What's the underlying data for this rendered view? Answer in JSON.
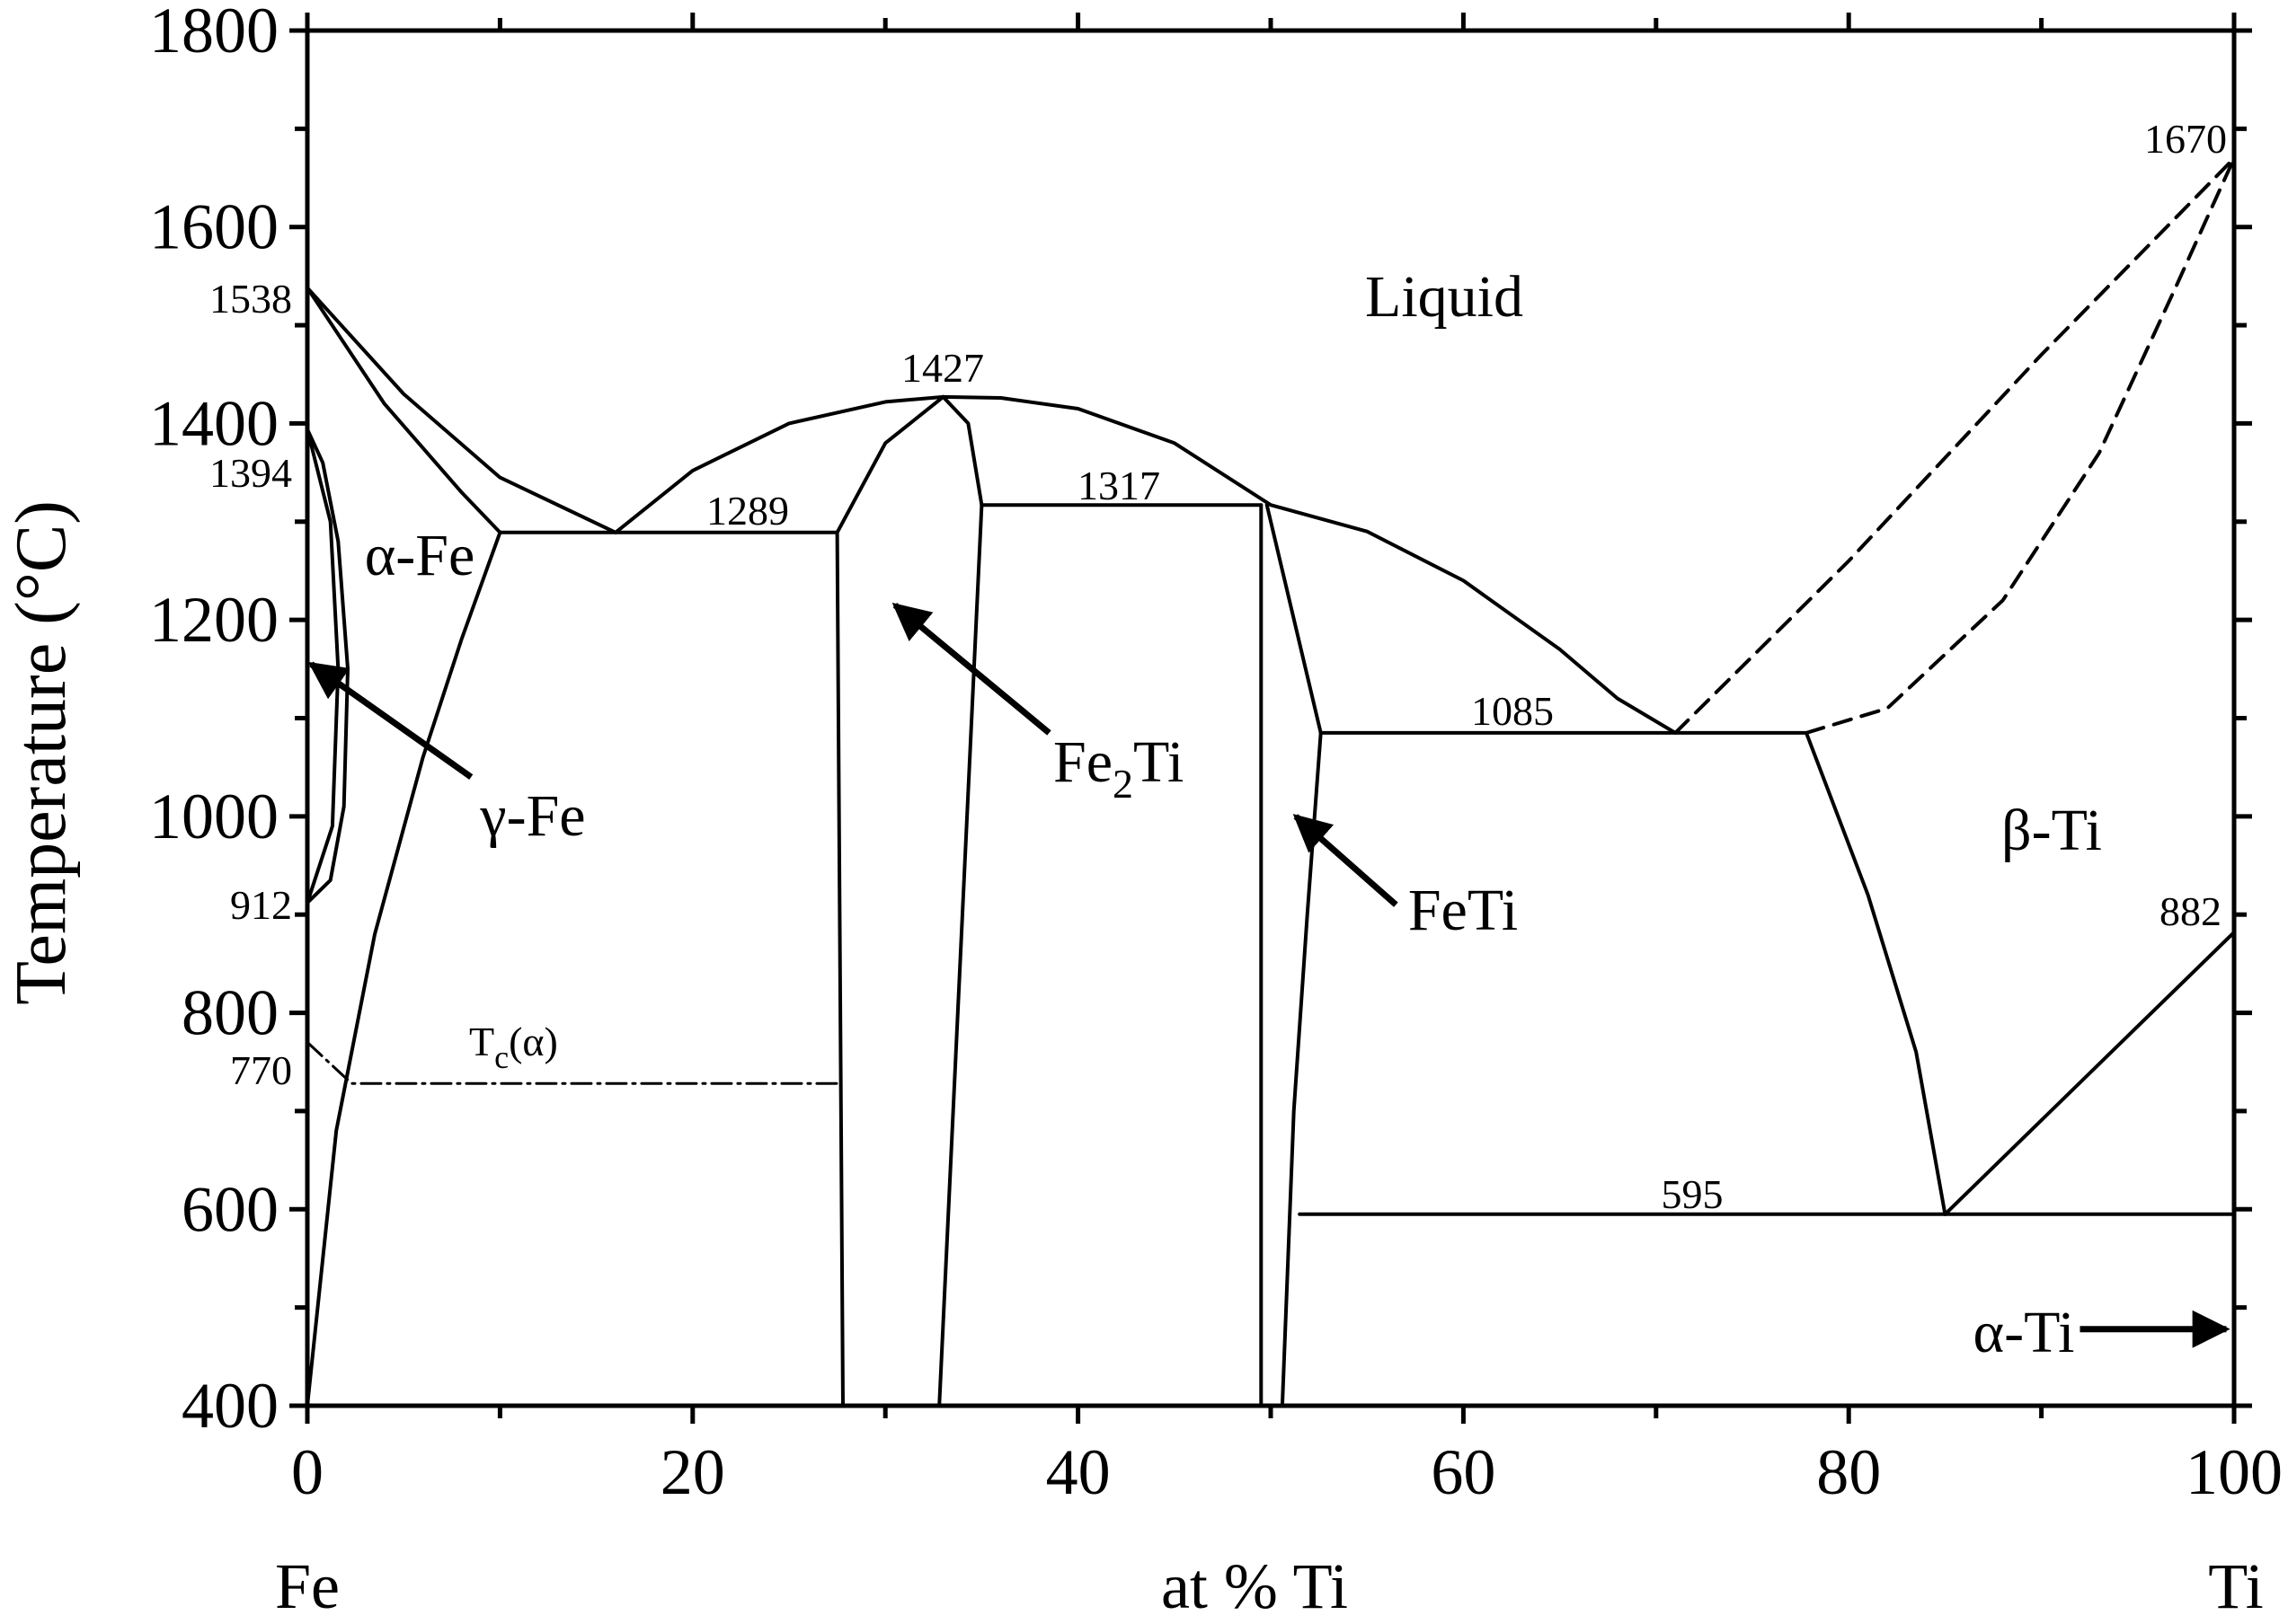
{
  "chart_data": {
    "type": "line",
    "title": "",
    "xlabel": "at % Ti",
    "ylabel": "Temperature (°C)",
    "xlim": [
      0,
      100
    ],
    "ylim": [
      400,
      1800
    ],
    "x_ticks": [
      0,
      20,
      40,
      60,
      80,
      100
    ],
    "x_tick_labels": [
      "0",
      "20",
      "40",
      "60",
      "80",
      "100"
    ],
    "y_ticks": [
      400,
      600,
      800,
      1000,
      1200,
      1400,
      1600,
      1800
    ],
    "y_tick_labels": [
      "400",
      "600",
      "800",
      "1000",
      "1200",
      "1400",
      "1600",
      "1800"
    ],
    "x_end_labels": {
      "left": "Fe",
      "right": "Ti"
    },
    "grid": false,
    "temperature_labels": [
      {
        "text": "1538"
      },
      {
        "text": "1394"
      },
      {
        "text": "912"
      },
      {
        "text": "770"
      },
      {
        "text": "1289"
      },
      {
        "text": "1427"
      },
      {
        "text": "1317"
      },
      {
        "text": "1085"
      },
      {
        "text": "1670"
      },
      {
        "text": "882"
      },
      {
        "text": "595"
      }
    ],
    "phase_labels": {
      "liquid": "Liquid",
      "alpha_fe": "α-Fe",
      "gamma_fe": "γ-Fe",
      "fe2ti_main": "Fe",
      "fe2ti_sub": "2",
      "fe2ti_tail": "Ti",
      "feti": "FeTi",
      "beta_ti": "β-Ti",
      "alpha_ti": "α-Ti",
      "tc_main": "T",
      "tc_sub": "c",
      "tc_tail": "(α)"
    },
    "series": [
      {
        "style": "solid",
        "points": [
          [
            0,
            1538
          ],
          [
            5,
            1430
          ],
          [
            10,
            1345
          ],
          [
            16,
            1289
          ]
        ]
      },
      {
        "style": "solid",
        "points": [
          [
            0,
            1538
          ],
          [
            4,
            1420
          ],
          [
            8,
            1330
          ],
          [
            10,
            1289
          ]
        ]
      },
      {
        "style": "solid",
        "points": [
          [
            16,
            1289
          ],
          [
            20,
            1352
          ],
          [
            25,
            1400
          ],
          [
            30,
            1422
          ],
          [
            33,
            1427
          ],
          [
            36,
            1426
          ],
          [
            40,
            1415
          ],
          [
            45,
            1380
          ],
          [
            50,
            1317
          ],
          [
            55,
            1290
          ],
          [
            60,
            1240
          ],
          [
            65,
            1170
          ],
          [
            68,
            1120
          ],
          [
            71,
            1085
          ]
        ]
      },
      {
        "style": "solid",
        "points": [
          [
            10,
            1289
          ],
          [
            27.5,
            1289
          ]
        ]
      },
      {
        "style": "solid",
        "points": [
          [
            10,
            1289
          ],
          [
            8,
            1180
          ],
          [
            6,
            1060
          ],
          [
            3.5,
            880
          ],
          [
            1.5,
            680
          ],
          [
            0,
            400
          ]
        ]
      },
      {
        "style": "solid",
        "points": [
          [
            0,
            1394
          ],
          [
            0.8,
            1360
          ],
          [
            1.6,
            1280
          ],
          [
            2.1,
            1150
          ],
          [
            1.9,
            1010
          ],
          [
            1.2,
            935
          ],
          [
            0,
            912
          ]
        ]
      },
      {
        "style": "solid",
        "points": [
          [
            0,
            1394
          ],
          [
            1.2,
            1300
          ],
          [
            1.6,
            1150
          ],
          [
            1.3,
            990
          ],
          [
            0,
            912
          ]
        ]
      },
      {
        "style": "solid",
        "points": [
          [
            27.5,
            1289
          ],
          [
            27.8,
            400
          ]
        ]
      },
      {
        "style": "solid",
        "points": [
          [
            27.5,
            1289
          ],
          [
            30,
            1380
          ],
          [
            33,
            1427
          ]
        ]
      },
      {
        "style": "solid",
        "points": [
          [
            33,
            1427
          ],
          [
            34.3,
            1400
          ],
          [
            35,
            1317
          ]
        ]
      },
      {
        "style": "solid",
        "points": [
          [
            35,
            1317
          ],
          [
            32.8,
            400
          ]
        ]
      },
      {
        "style": "solid",
        "points": [
          [
            35,
            1317
          ],
          [
            49.5,
            1317
          ]
        ]
      },
      {
        "style": "solid",
        "points": [
          [
            49.5,
            1317
          ],
          [
            49.5,
            400
          ]
        ]
      },
      {
        "style": "solid",
        "points": [
          [
            49.8,
            1317
          ],
          [
            52.6,
            1085
          ]
        ]
      },
      {
        "style": "solid",
        "points": [
          [
            52.6,
            1085
          ],
          [
            51.9,
            900
          ],
          [
            51.2,
            700
          ],
          [
            50.6,
            400
          ]
        ]
      },
      {
        "style": "solid",
        "points": [
          [
            52.6,
            1085
          ],
          [
            77.8,
            1085
          ]
        ]
      },
      {
        "style": "solid",
        "points": [
          [
            77.8,
            1085
          ],
          [
            81,
            920
          ],
          [
            83.5,
            760
          ],
          [
            85,
            595
          ]
        ]
      },
      {
        "style": "solid",
        "points": [
          [
            51.5,
            595
          ],
          [
            100,
            595
          ]
        ]
      },
      {
        "style": "solid",
        "points": [
          [
            85,
            595
          ],
          [
            100,
            882
          ]
        ]
      },
      {
        "style": "dashed",
        "points": [
          [
            71,
            1085
          ],
          [
            80,
            1260
          ],
          [
            90,
            1470
          ],
          [
            100,
            1670
          ]
        ]
      },
      {
        "style": "dashed",
        "points": [
          [
            77.8,
            1085
          ],
          [
            82,
            1110
          ],
          [
            88,
            1220
          ],
          [
            93,
            1370
          ],
          [
            97,
            1540
          ],
          [
            100,
            1670
          ]
        ]
      },
      {
        "style": "dashdot",
        "points": [
          [
            0,
            770
          ],
          [
            2.3,
            728
          ],
          [
            27.5,
            728
          ]
        ]
      }
    ],
    "arrows": [
      {
        "label": "gamma_fe",
        "from": [
          8.5,
          1040
        ],
        "to": [
          0.2,
          1155
        ]
      },
      {
        "label": "fe2ti",
        "from": [
          38.5,
          1085
        ],
        "to": [
          30.5,
          1215
        ]
      },
      {
        "label": "feti",
        "from": [
          56.5,
          910
        ],
        "to": [
          51.3,
          1000
        ]
      },
      {
        "label": "alpha_ti",
        "from": [
          92,
          478
        ],
        "to": [
          99.6,
          478
        ]
      }
    ]
  }
}
